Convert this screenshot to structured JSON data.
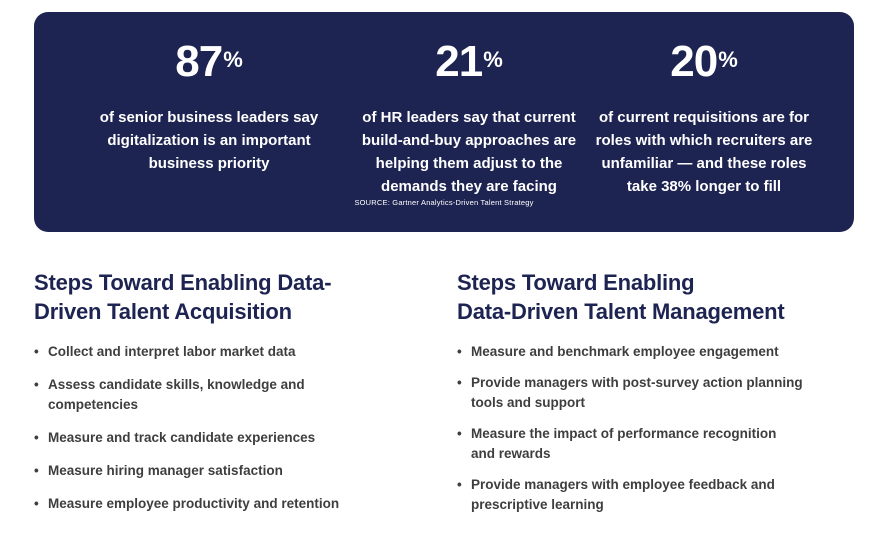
{
  "stats": [
    {
      "figure": "87",
      "unit": "%",
      "lines": [
        "of senior business leaders say",
        "digitalization is an important",
        "business priority"
      ]
    },
    {
      "figure": "21",
      "unit": "%",
      "lines": [
        "of HR leaders say that current",
        "build-and-buy approaches are",
        "helping them adjust to the",
        "demands they are facing"
      ]
    },
    {
      "figure": "20",
      "unit": "%",
      "lines": [
        "of current requisitions are for",
        "roles with which recruiters are",
        "unfamiliar — and these roles",
        "take 38% longer to fill"
      ]
    }
  ],
  "source": "SOURCE: Gartner Analytics-Driven Talent Strategy",
  "colors": {
    "panel": "#1e2452",
    "heading": "#1e2452",
    "body_text": "#3e3e3e"
  },
  "acquisition": {
    "title_lines": [
      "Steps Toward Enabling Data-",
      "Driven Talent Acquisition"
    ],
    "bullet": "•",
    "items": [
      [
        "Collect and interpret labor market data"
      ],
      [
        "Assess candidate skills, knowledge and",
        "competencies"
      ],
      [
        "Measure and track candidate experiences"
      ],
      [
        "Measure hiring manager satisfaction"
      ],
      [
        "Measure employee productivity and retention"
      ]
    ]
  },
  "management": {
    "title_lines": [
      "Steps Toward Enabling",
      "Data-Driven Talent Management"
    ],
    "bullet": "•",
    "items": [
      [
        "Measure and benchmark employee engagement"
      ],
      [
        "Provide managers with post-survey action planning",
        "tools and support"
      ],
      [
        "Measure the impact of performance recognition",
        "and rewards"
      ],
      [
        "Provide managers with employee feedback and",
        "prescriptive learning"
      ]
    ]
  }
}
